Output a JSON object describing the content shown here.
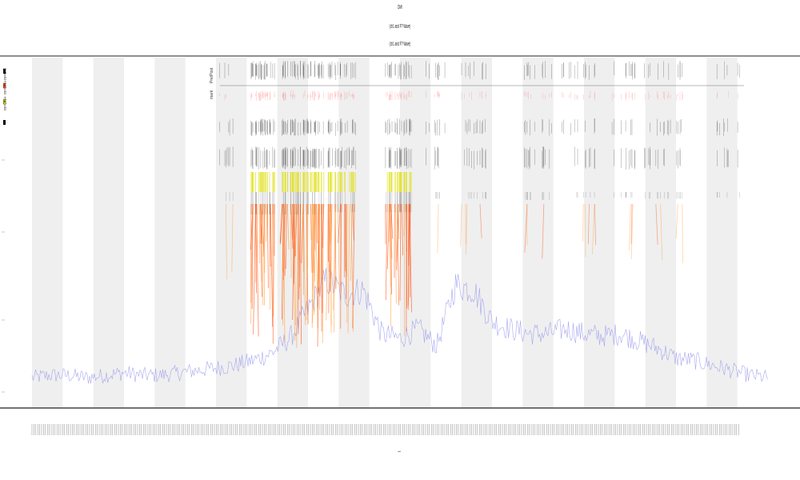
{
  "header": {
    "line1": "DMI",
    "line2": "(ch1 and F? Wave)",
    "line3": "(ch1 and F? Wave)"
  },
  "legend": {
    "items": [
      {
        "label": "m=ON",
        "color": "#000000"
      },
      {
        "label": "m=ON+",
        "color": "#ff4400"
      },
      {
        "label": "m=ON+",
        "color": "#cccc00"
      },
      {
        "label": "",
        "color": "#000000"
      }
    ]
  },
  "rows": {
    "label_a": "Pre/Post",
    "label_b": "mark"
  },
  "xaxis": {
    "label": "t"
  },
  "colors": {
    "shade": "#efefef",
    "signal": "#9999ee",
    "hot": "#ff4400",
    "warm": "#ff9933",
    "yellow": "#dddd00",
    "ink": "#111111",
    "red": "#ff6666",
    "axis": "#222222"
  },
  "chart_data": {
    "type": "line",
    "title": "",
    "xlabel": "t",
    "ylabel": "",
    "shaded_bands": 12,
    "grid": false,
    "series": [
      {
        "values": [
          0.02,
          0.03,
          0.03,
          0.02,
          0.03,
          0.04,
          0.03,
          0.03,
          0.04,
          0.05,
          0.06,
          0.07,
          0.09,
          0.12,
          0.18,
          0.3,
          0.42,
          0.36,
          0.38,
          0.2,
          0.18,
          0.22,
          0.15,
          0.4,
          0.38,
          0.25,
          0.22,
          0.2,
          0.2,
          0.22,
          0.2,
          0.19,
          0.2,
          0.17,
          0.14,
          0.1,
          0.09,
          0.07,
          0.05,
          0.03,
          0.02
        ]
      }
    ]
  }
}
